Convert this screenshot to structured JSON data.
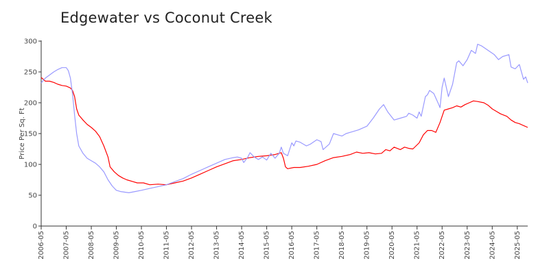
{
  "chart_data": {
    "type": "line",
    "title": "Edgewater vs Coconut Creek",
    "xlabel": "",
    "ylabel": "Price Per Sq. Ft",
    "xlim": [
      "2006-05",
      "2025-10"
    ],
    "ylim": [
      0,
      300
    ],
    "yticks": [
      0,
      50,
      100,
      150,
      200,
      250,
      300
    ],
    "xticks": [
      "2006-05",
      "2007-05",
      "2008-05",
      "2009-05",
      "2010-05",
      "2011-05",
      "2012-05",
      "2013-05",
      "2014-05",
      "2015-05",
      "2016-05",
      "2017-05",
      "2018-05",
      "2019-05",
      "2020-05",
      "2021-05",
      "2022-05",
      "2023-05",
      "2024-05",
      "2025-05"
    ],
    "grid": false,
    "legend": "none",
    "series": [
      {
        "color": "#ff0000",
        "points": [
          [
            "2006-05",
            241
          ],
          [
            "2006-07",
            235
          ],
          [
            "2006-09",
            235
          ],
          [
            "2006-11",
            233
          ],
          [
            "2007-01",
            230
          ],
          [
            "2007-03",
            228
          ],
          [
            "2007-05",
            227
          ],
          [
            "2007-07",
            224
          ],
          [
            "2007-08",
            220
          ],
          [
            "2007-09",
            210
          ],
          [
            "2007-10",
            190
          ],
          [
            "2007-11",
            180
          ],
          [
            "2008-01",
            172
          ],
          [
            "2008-03",
            165
          ],
          [
            "2008-05",
            160
          ],
          [
            "2008-07",
            154
          ],
          [
            "2008-09",
            145
          ],
          [
            "2008-11",
            130
          ],
          [
            "2009-01",
            112
          ],
          [
            "2009-02",
            96
          ],
          [
            "2009-04",
            88
          ],
          [
            "2009-06",
            82
          ],
          [
            "2009-08",
            78
          ],
          [
            "2009-10",
            75
          ],
          [
            "2010-01",
            72
          ],
          [
            "2010-03",
            70
          ],
          [
            "2010-06",
            70
          ],
          [
            "2010-09",
            67
          ],
          [
            "2011-01",
            68
          ],
          [
            "2011-05",
            67
          ],
          [
            "2011-09",
            70
          ],
          [
            "2012-01",
            73
          ],
          [
            "2012-05",
            78
          ],
          [
            "2012-09",
            84
          ],
          [
            "2013-01",
            90
          ],
          [
            "2013-05",
            96
          ],
          [
            "2013-09",
            101
          ],
          [
            "2014-01",
            106
          ],
          [
            "2014-05",
            108
          ],
          [
            "2014-09",
            111
          ],
          [
            "2015-01",
            113
          ],
          [
            "2015-05",
            114
          ],
          [
            "2015-09",
            116
          ],
          [
            "2015-12",
            119
          ],
          [
            "2016-01",
            110
          ],
          [
            "2016-02",
            96
          ],
          [
            "2016-03",
            93
          ],
          [
            "2016-06",
            95
          ],
          [
            "2016-09",
            95
          ],
          [
            "2017-01",
            97
          ],
          [
            "2017-05",
            100
          ],
          [
            "2017-09",
            106
          ],
          [
            "2018-01",
            111
          ],
          [
            "2018-05",
            113
          ],
          [
            "2018-09",
            116
          ],
          [
            "2018-12",
            120
          ],
          [
            "2019-03",
            118
          ],
          [
            "2019-06",
            119
          ],
          [
            "2019-09",
            117
          ],
          [
            "2019-12",
            118
          ],
          [
            "2020-02",
            124
          ],
          [
            "2020-04",
            122
          ],
          [
            "2020-06",
            128
          ],
          [
            "2020-09",
            124
          ],
          [
            "2020-11",
            128
          ],
          [
            "2021-01",
            126
          ],
          [
            "2021-03",
            125
          ],
          [
            "2021-06",
            135
          ],
          [
            "2021-08",
            148
          ],
          [
            "2021-10",
            155
          ],
          [
            "2021-12",
            155
          ],
          [
            "2022-02",
            152
          ],
          [
            "2022-04",
            168
          ],
          [
            "2022-06",
            188
          ],
          [
            "2022-08",
            190
          ],
          [
            "2022-10",
            192
          ],
          [
            "2022-12",
            195
          ],
          [
            "2023-02",
            193
          ],
          [
            "2023-04",
            197
          ],
          [
            "2023-06",
            200
          ],
          [
            "2023-08",
            203
          ],
          [
            "2023-10",
            202
          ],
          [
            "2024-01",
            200
          ],
          [
            "2024-03",
            196
          ],
          [
            "2024-05",
            190
          ],
          [
            "2024-07",
            186
          ],
          [
            "2024-09",
            182
          ],
          [
            "2024-12",
            178
          ],
          [
            "2025-02",
            172
          ],
          [
            "2025-04",
            168
          ],
          [
            "2025-06",
            166
          ],
          [
            "2025-08",
            163
          ],
          [
            "2025-10",
            160
          ]
        ]
      },
      {
        "color": "#9999ff",
        "points": [
          [
            "2006-05",
            232
          ],
          [
            "2006-07",
            240
          ],
          [
            "2006-09",
            245
          ],
          [
            "2006-11",
            250
          ],
          [
            "2007-01",
            254
          ],
          [
            "2007-03",
            257
          ],
          [
            "2007-05",
            257
          ],
          [
            "2007-06",
            252
          ],
          [
            "2007-07",
            240
          ],
          [
            "2007-08",
            215
          ],
          [
            "2007-09",
            180
          ],
          [
            "2007-10",
            150
          ],
          [
            "2007-11",
            130
          ],
          [
            "2008-01",
            118
          ],
          [
            "2008-03",
            110
          ],
          [
            "2008-05",
            106
          ],
          [
            "2008-07",
            102
          ],
          [
            "2008-09",
            96
          ],
          [
            "2008-11",
            88
          ],
          [
            "2009-01",
            75
          ],
          [
            "2009-03",
            65
          ],
          [
            "2009-05",
            58
          ],
          [
            "2009-07",
            56
          ],
          [
            "2009-09",
            55
          ],
          [
            "2009-11",
            54
          ],
          [
            "2010-02",
            56
          ],
          [
            "2010-05",
            58
          ],
          [
            "2010-09",
            61
          ],
          [
            "2011-01",
            64
          ],
          [
            "2011-05",
            67
          ],
          [
            "2011-09",
            72
          ],
          [
            "2012-01",
            77
          ],
          [
            "2012-05",
            84
          ],
          [
            "2012-09",
            90
          ],
          [
            "2013-01",
            96
          ],
          [
            "2013-05",
            102
          ],
          [
            "2013-09",
            108
          ],
          [
            "2014-01",
            111
          ],
          [
            "2014-03",
            112
          ],
          [
            "2014-05",
            110
          ],
          [
            "2014-06",
            103
          ],
          [
            "2014-08",
            112
          ],
          [
            "2014-09",
            119
          ],
          [
            "2014-11",
            112
          ],
          [
            "2015-01",
            108
          ],
          [
            "2015-03",
            112
          ],
          [
            "2015-05",
            107
          ],
          [
            "2015-07",
            118
          ],
          [
            "2015-09",
            110
          ],
          [
            "2015-11",
            118
          ],
          [
            "2015-12",
            128
          ],
          [
            "2016-01",
            118
          ],
          [
            "2016-03",
            114
          ],
          [
            "2016-05",
            135
          ],
          [
            "2016-06",
            130
          ],
          [
            "2016-07",
            138
          ],
          [
            "2016-09",
            136
          ],
          [
            "2016-12",
            130
          ],
          [
            "2017-02",
            133
          ],
          [
            "2017-05",
            140
          ],
          [
            "2017-07",
            137
          ],
          [
            "2017-08",
            124
          ],
          [
            "2017-11",
            133
          ],
          [
            "2018-01",
            150
          ],
          [
            "2018-03",
            148
          ],
          [
            "2018-05",
            146
          ],
          [
            "2018-07",
            150
          ],
          [
            "2018-10",
            153
          ],
          [
            "2019-01",
            156
          ],
          [
            "2019-05",
            162
          ],
          [
            "2019-08",
            175
          ],
          [
            "2019-11",
            190
          ],
          [
            "2020-01",
            197
          ],
          [
            "2020-03",
            185
          ],
          [
            "2020-06",
            172
          ],
          [
            "2020-09",
            175
          ],
          [
            "2020-12",
            178
          ],
          [
            "2021-01",
            183
          ],
          [
            "2021-03",
            180
          ],
          [
            "2021-05",
            175
          ],
          [
            "2021-06",
            185
          ],
          [
            "2021-07",
            178
          ],
          [
            "2021-09",
            210
          ],
          [
            "2021-10",
            213
          ],
          [
            "2021-11",
            220
          ],
          [
            "2022-01",
            215
          ],
          [
            "2022-03",
            200
          ],
          [
            "2022-04",
            192
          ],
          [
            "2022-05",
            225
          ],
          [
            "2022-06",
            240
          ],
          [
            "2022-08",
            210
          ],
          [
            "2022-10",
            230
          ],
          [
            "2022-12",
            265
          ],
          [
            "2023-01",
            268
          ],
          [
            "2023-03",
            260
          ],
          [
            "2023-05",
            270
          ],
          [
            "2023-07",
            285
          ],
          [
            "2023-09",
            280
          ],
          [
            "2023-10",
            295
          ],
          [
            "2023-12",
            292
          ],
          [
            "2024-03",
            285
          ],
          [
            "2024-06",
            278
          ],
          [
            "2024-08",
            270
          ],
          [
            "2024-10",
            275
          ],
          [
            "2025-01",
            278
          ],
          [
            "2025-02",
            258
          ],
          [
            "2025-04",
            255
          ],
          [
            "2025-06",
            262
          ],
          [
            "2025-08",
            238
          ],
          [
            "2025-09",
            242
          ],
          [
            "2025-10",
            232
          ]
        ]
      }
    ]
  }
}
